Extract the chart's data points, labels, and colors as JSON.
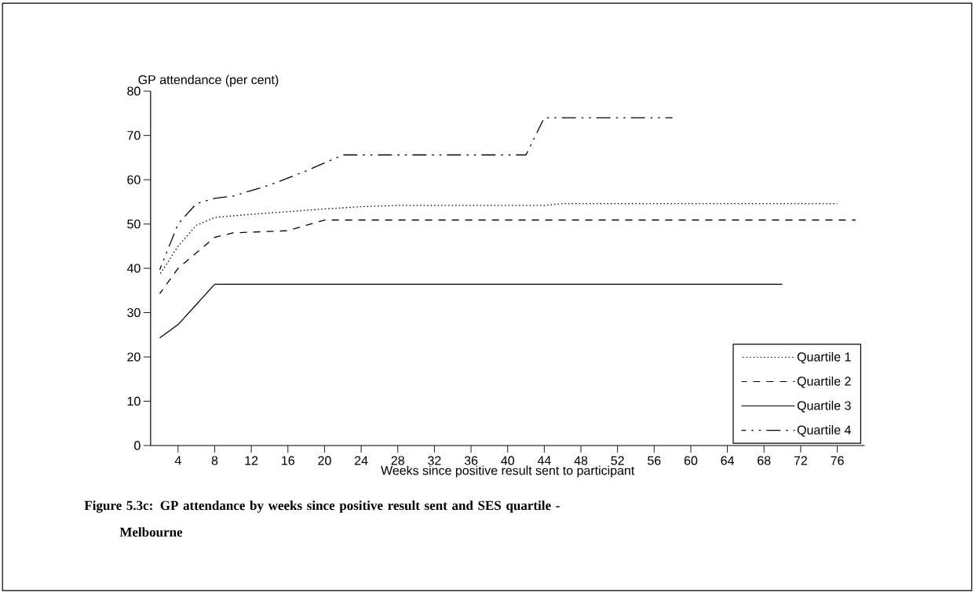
{
  "chart_data": {
    "type": "line",
    "title": "Figure 5.3c:  GP attendance by weeks since positive result sent and SES quartile - Melbourne",
    "xlabel": "Weeks since positive result sent to participant",
    "ylabel": "GP attendance (per cent)",
    "xlim": [
      1,
      79
    ],
    "xticks": [
      4,
      8,
      12,
      16,
      20,
      24,
      28,
      32,
      36,
      40,
      44,
      48,
      52,
      56,
      60,
      64,
      68,
      72,
      76
    ],
    "ylim": [
      0,
      80
    ],
    "yticks": [
      0,
      10,
      20,
      30,
      40,
      50,
      60,
      70,
      80
    ],
    "legend": "bottom right",
    "series": [
      {
        "name": "Quartile 1",
        "color": "#000000",
        "line_style": "dotted",
        "x": [
          2,
          4,
          6,
          8,
          12,
          16,
          20,
          24,
          28,
          44,
          46,
          76
        ],
        "values": [
          38.6,
          45,
          49.7,
          51.5,
          52.2,
          52.8,
          53.4,
          53.9,
          54.2,
          54.2,
          54.6,
          54.6
        ]
      },
      {
        "name": "Quartile 2",
        "color": "#000000",
        "line_style": "dashed",
        "x": [
          2,
          4,
          6,
          8,
          10,
          16,
          20,
          78
        ],
        "values": [
          34.3,
          40,
          43.5,
          47,
          48,
          48.5,
          50.9,
          50.9
        ]
      },
      {
        "name": "Quartile 3",
        "color": "#000000",
        "line_style": "solid",
        "x": [
          2,
          4,
          8,
          70
        ],
        "values": [
          24.3,
          27.3,
          36.4,
          36.4
        ]
      },
      {
        "name": "Quartile 4",
        "color": "#000000",
        "line_style": "dashdot",
        "x": [
          2,
          4,
          6,
          8,
          10,
          14,
          18,
          22,
          42,
          44,
          58
        ],
        "values": [
          39.7,
          50,
          54.6,
          55.8,
          56.3,
          58.8,
          62,
          65.6,
          65.6,
          74,
          74
        ]
      }
    ]
  }
}
